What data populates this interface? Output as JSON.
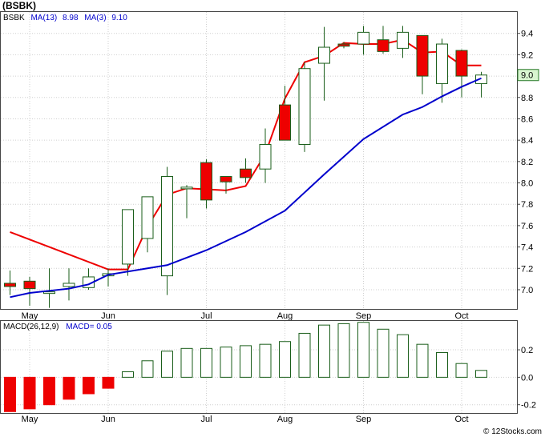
{
  "title": "(BSBK)",
  "watermark": "© 12Stocks.com",
  "colors": {
    "up_candle_fill": "#ffffff",
    "candle_outline": "#1a5e1a",
    "down_candle_fill": "#ee0000",
    "ma13_line": "#0000cc",
    "ma3_line": "#ee0000",
    "macd_pos_outline": "#1a5e1a",
    "macd_neg_fill": "#ee0000",
    "last_price_box": "#d8f5d0"
  },
  "chart_data": [
    {
      "type": "candlestick",
      "ticker": "BSBK",
      "legend": [
        {
          "label": "BSBK",
          "color": "#000000"
        },
        {
          "label": "MA(13)",
          "value": "8.98",
          "color": "#0000cc"
        },
        {
          "label": "MA(3)",
          "value": "9.10",
          "color": "#0000cc"
        }
      ],
      "last_price_label": "9.0",
      "x_tick_labels": [
        "May",
        "Jun",
        "Jul",
        "Aug",
        "Sep",
        "Oct"
      ],
      "x_tick_index": [
        1,
        5,
        10,
        14,
        18,
        23
      ],
      "ylim": [
        6.82,
        9.6
      ],
      "y_ticks": [
        7.0,
        7.2,
        7.4,
        7.6,
        7.8,
        8.0,
        8.2,
        8.4,
        8.6,
        8.8,
        9.0,
        9.2,
        9.4
      ],
      "y_tick_labels": [
        "7.0",
        "7.2",
        "7.4",
        "7.6",
        "7.8",
        "8.0",
        "8.2",
        "8.4",
        "8.6",
        "8.8",
        "9.0",
        "9.2",
        "9.4"
      ],
      "grid": true,
      "candles": [
        {
          "o": 7.06,
          "h": 7.18,
          "l": 6.95,
          "c": 7.03
        },
        {
          "o": 7.08,
          "h": 7.12,
          "l": 6.85,
          "c": 7.01
        },
        {
          "o": 6.97,
          "h": 7.2,
          "l": 6.83,
          "c": 6.98
        },
        {
          "o": 7.03,
          "h": 7.2,
          "l": 6.9,
          "c": 7.06
        },
        {
          "o": 7.02,
          "h": 7.2,
          "l": 7.0,
          "c": 7.12
        },
        {
          "o": 7.13,
          "h": 7.2,
          "l": 7.03,
          "c": 7.15
        },
        {
          "o": 7.24,
          "h": 7.75,
          "l": 7.13,
          "c": 7.75
        },
        {
          "o": 7.48,
          "h": 7.87,
          "l": 7.35,
          "c": 7.87
        },
        {
          "o": 7.13,
          "h": 8.15,
          "l": 6.95,
          "c": 8.06
        },
        {
          "o": 7.95,
          "h": 7.98,
          "l": 7.67,
          "c": 7.96
        },
        {
          "o": 8.19,
          "h": 8.22,
          "l": 7.76,
          "c": 7.84
        },
        {
          "o": 8.06,
          "h": 8.06,
          "l": 7.9,
          "c": 8.01
        },
        {
          "o": 8.13,
          "h": 8.23,
          "l": 8.0,
          "c": 8.05
        },
        {
          "o": 8.13,
          "h": 8.51,
          "l": 8.0,
          "c": 8.36
        },
        {
          "o": 8.73,
          "h": 8.91,
          "l": 8.4,
          "c": 8.4
        },
        {
          "o": 8.36,
          "h": 9.13,
          "l": 8.29,
          "c": 9.07
        },
        {
          "o": 9.12,
          "h": 9.46,
          "l": 8.77,
          "c": 9.27
        },
        {
          "o": 9.3,
          "h": 9.32,
          "l": 9.26,
          "c": 9.28
        },
        {
          "o": 9.3,
          "h": 9.47,
          "l": 9.2,
          "c": 9.41
        },
        {
          "o": 9.34,
          "h": 9.47,
          "l": 9.21,
          "c": 9.23
        },
        {
          "o": 9.26,
          "h": 9.47,
          "l": 9.17,
          "c": 9.41
        },
        {
          "o": 9.38,
          "h": 9.38,
          "l": 8.83,
          "c": 9.0
        },
        {
          "o": 8.93,
          "h": 9.35,
          "l": 8.75,
          "c": 9.3
        },
        {
          "o": 9.24,
          "h": 9.25,
          "l": 8.8,
          "c": 9.0
        },
        {
          "o": 8.93,
          "h": 9.04,
          "l": 8.8,
          "c": 9.01
        }
      ],
      "ma13": [
        {
          "i": 0,
          "v": 6.93
        },
        {
          "i": 1,
          "v": 6.97
        },
        {
          "i": 2,
          "v": 6.99
        },
        {
          "i": 3,
          "v": 7.01
        },
        {
          "i": 4,
          "v": 7.05
        },
        {
          "i": 5,
          "v": 7.14
        },
        {
          "i": 7,
          "v": 7.2
        },
        {
          "i": 8,
          "v": 7.23
        },
        {
          "i": 9,
          "v": 7.3
        },
        {
          "i": 10,
          "v": 7.37
        },
        {
          "i": 12,
          "v": 7.54
        },
        {
          "i": 14,
          "v": 7.74
        },
        {
          "i": 16,
          "v": 8.08
        },
        {
          "i": 18,
          "v": 8.41
        },
        {
          "i": 20,
          "v": 8.64
        },
        {
          "i": 21,
          "v": 8.71
        },
        {
          "i": 22,
          "v": 8.81
        },
        {
          "i": 23,
          "v": 8.9
        },
        {
          "i": 24,
          "v": 8.98
        }
      ],
      "ma3": [
        {
          "i": 0,
          "v": 7.54
        },
        {
          "i": 2,
          "v": 7.4
        },
        {
          "i": 5,
          "v": 7.19
        },
        {
          "i": 6,
          "v": 7.19
        },
        {
          "i": 7,
          "v": 7.59
        },
        {
          "i": 8,
          "v": 7.89
        },
        {
          "i": 9,
          "v": 7.95
        },
        {
          "i": 10,
          "v": 7.94
        },
        {
          "i": 11,
          "v": 7.93
        },
        {
          "i": 12,
          "v": 7.97
        },
        {
          "i": 13,
          "v": 8.27
        },
        {
          "i": 14,
          "v": 8.79
        },
        {
          "i": 15,
          "v": 9.13
        },
        {
          "i": 16,
          "v": 9.19
        },
        {
          "i": 17,
          "v": 9.31
        },
        {
          "i": 18,
          "v": 9.3
        },
        {
          "i": 19,
          "v": 9.3
        },
        {
          "i": 20,
          "v": 9.34
        },
        {
          "i": 21,
          "v": 9.22
        },
        {
          "i": 22,
          "v": 9.23
        },
        {
          "i": 23,
          "v": 9.1
        },
        {
          "i": 24,
          "v": 9.1
        }
      ]
    },
    {
      "type": "bar",
      "legend": [
        {
          "label": "MACD(26,12,9)",
          "color": "#000000"
        },
        {
          "label": "MACD=",
          "value": "0.05",
          "color": "#0000cc"
        }
      ],
      "x_tick_labels": [
        "May",
        "Jun",
        "Jul",
        "Aug",
        "Sep",
        "Oct"
      ],
      "x_tick_index": [
        1,
        5,
        10,
        14,
        18,
        23
      ],
      "ylim": [
        -0.26,
        0.41
      ],
      "y_ticks": [
        -0.2,
        0.0,
        0.2
      ],
      "y_tick_labels": [
        "-0.2",
        "0.0",
        "0.2"
      ],
      "grid": true,
      "values": [
        -0.25,
        -0.23,
        -0.2,
        -0.16,
        -0.12,
        -0.08,
        0.04,
        0.12,
        0.19,
        0.21,
        0.21,
        0.22,
        0.23,
        0.24,
        0.26,
        0.32,
        0.38,
        0.39,
        0.4,
        0.35,
        0.31,
        0.24,
        0.18,
        0.1,
        0.05
      ]
    }
  ]
}
